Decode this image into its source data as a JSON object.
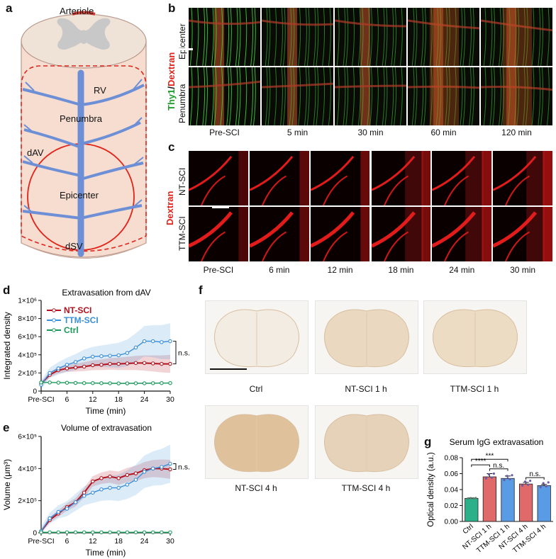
{
  "panel_letters": {
    "a": "a",
    "b": "b",
    "c": "c",
    "d": "d",
    "e": "e",
    "f": "f",
    "g": "g"
  },
  "panel_a": {
    "labels": {
      "arteriole": "Arteriole",
      "rv": "RV",
      "penumbra": "Penumbra",
      "dav": "dAV",
      "epicenter": "Epicenter",
      "dsv": "dSV"
    },
    "colors": {
      "tissue": "#f6ddd0",
      "vessel": "#6d8fd6",
      "outline_red": "#e2231a",
      "gray_matter": "#c8c8c8"
    }
  },
  "panel_b": {
    "stain_left": "Thy1",
    "stain_sep": "/",
    "stain_right": "Dextran",
    "rows": [
      "Epicenter",
      "Penumbra"
    ],
    "times": [
      "Pre-SCI",
      "5 min",
      "30 min",
      "60 min",
      "120 min"
    ]
  },
  "panel_c": {
    "stain": "Dextran",
    "rows": [
      "NT-SCI",
      "TTM-SCI"
    ],
    "times": [
      "Pre-SCI",
      "6 min",
      "12 min",
      "18 min",
      "24 min",
      "30 min"
    ]
  },
  "panel_f": {
    "sections": [
      "Ctrl",
      "NT-SCI 1 h",
      "TTM-SCI 1 h",
      "NT-SCI 4 h",
      "TTM-SCI 4 h"
    ]
  },
  "chart_data": [
    {
      "id": "d",
      "type": "line",
      "title": "Extravasation from dAV",
      "xlabel": "Time (min)",
      "ylabel": "Integrated density",
      "x": [
        0,
        2,
        4,
        6,
        8,
        10,
        12,
        14,
        16,
        18,
        20,
        22,
        24,
        26,
        28,
        30
      ],
      "xticks": [
        "Pre-SCI",
        "6",
        "12",
        "18",
        "24",
        "30"
      ],
      "xtick_values": [
        0,
        6,
        12,
        18,
        24,
        30
      ],
      "ylim": [
        0,
        1000000
      ],
      "yticks": [
        0,
        200000,
        400000,
        600000,
        800000,
        1000000
      ],
      "ytick_labels": [
        "0",
        "2×10⁵",
        "4×10⁵",
        "6×10⁵",
        "8×10⁵",
        "1×10⁶"
      ],
      "series": [
        {
          "name": "NT-SCI",
          "color": "#b3121e",
          "values": [
            80000,
            180000,
            230000,
            250000,
            260000,
            270000,
            285000,
            290000,
            300000,
            300000,
            305000,
            310000,
            310000,
            305000,
            300000,
            300000
          ]
        },
        {
          "name": "TTM-SCI",
          "color": "#3b8fd9",
          "values": [
            70000,
            200000,
            250000,
            290000,
            320000,
            360000,
            380000,
            385000,
            390000,
            395000,
            420000,
            480000,
            550000,
            550000,
            540000,
            550000
          ]
        },
        {
          "name": "Ctrl",
          "color": "#1a9a5b",
          "values": [
            95000,
            95000,
            93000,
            92000,
            90000,
            88000,
            88000,
            87000,
            86000,
            85000,
            85000,
            86000,
            86000,
            87000,
            88000,
            88000
          ]
        }
      ],
      "annotation": "n.s."
    },
    {
      "id": "e",
      "type": "line",
      "title": "Volume of extravasation",
      "xlabel": "Time (min)",
      "ylabel": "Volume (μm³)",
      "x": [
        0,
        2,
        4,
        6,
        8,
        10,
        12,
        14,
        16,
        18,
        20,
        22,
        24,
        26,
        28,
        30
      ],
      "xticks": [
        "Pre-SCI",
        "6",
        "12",
        "18",
        "24",
        "30"
      ],
      "xtick_values": [
        0,
        6,
        12,
        18,
        24,
        30
      ],
      "ylim": [
        0,
        600000
      ],
      "yticks": [
        0,
        200000,
        400000,
        600000
      ],
      "ytick_labels": [
        "0",
        "2×10⁵",
        "4×10⁵",
        "6×10⁵"
      ],
      "series": [
        {
          "name": "NT-SCI",
          "color": "#b3121e",
          "values": [
            10000,
            80000,
            120000,
            160000,
            190000,
            250000,
            320000,
            340000,
            350000,
            340000,
            360000,
            370000,
            390000,
            400000,
            400000,
            395000
          ]
        },
        {
          "name": "TTM-SCI",
          "color": "#3b8fd9",
          "values": [
            10000,
            90000,
            130000,
            150000,
            190000,
            230000,
            250000,
            270000,
            280000,
            280000,
            300000,
            330000,
            380000,
            400000,
            410000,
            430000
          ]
        },
        {
          "name": "Ctrl",
          "color": "#1a9a5b",
          "values": [
            3000,
            3000,
            3000,
            3000,
            3000,
            3000,
            3000,
            3000,
            3000,
            3000,
            3000,
            3000,
            3000,
            3000,
            3000,
            3000
          ]
        }
      ],
      "annotation": "n.s."
    },
    {
      "id": "g",
      "type": "bar",
      "title": "Serum IgG extravasation",
      "ylabel": "Optical density (a.u.)",
      "categories": [
        "Ctrl",
        "NT-SCI 1 h",
        "TTM-SCI 1 h",
        "NT-SCI 4 h",
        "TTM-SCI 4 h"
      ],
      "values": [
        0.029,
        0.056,
        0.054,
        0.047,
        0.045
      ],
      "errors": [
        0.0005,
        0.004,
        0.003,
        0.002,
        0.0015
      ],
      "colors": [
        "#2bb08a",
        "#e06a6a",
        "#5a9be6",
        "#e06a6a",
        "#5a9be6"
      ],
      "ylim": [
        0,
        0.08
      ],
      "yticks": [
        0,
        0.02,
        0.04,
        0.06,
        0.08
      ],
      "ytick_labels": [
        "0.00",
        "0.02",
        "0.04",
        "0.06",
        "0.08"
      ],
      "significance": [
        {
          "from": 0,
          "to": 2,
          "label": "***"
        },
        {
          "from": 0,
          "to": 1,
          "label": "****"
        },
        {
          "from": 1,
          "to": 2,
          "label": "n.s."
        },
        {
          "from": 3,
          "to": 4,
          "label": "n.s."
        }
      ]
    }
  ]
}
